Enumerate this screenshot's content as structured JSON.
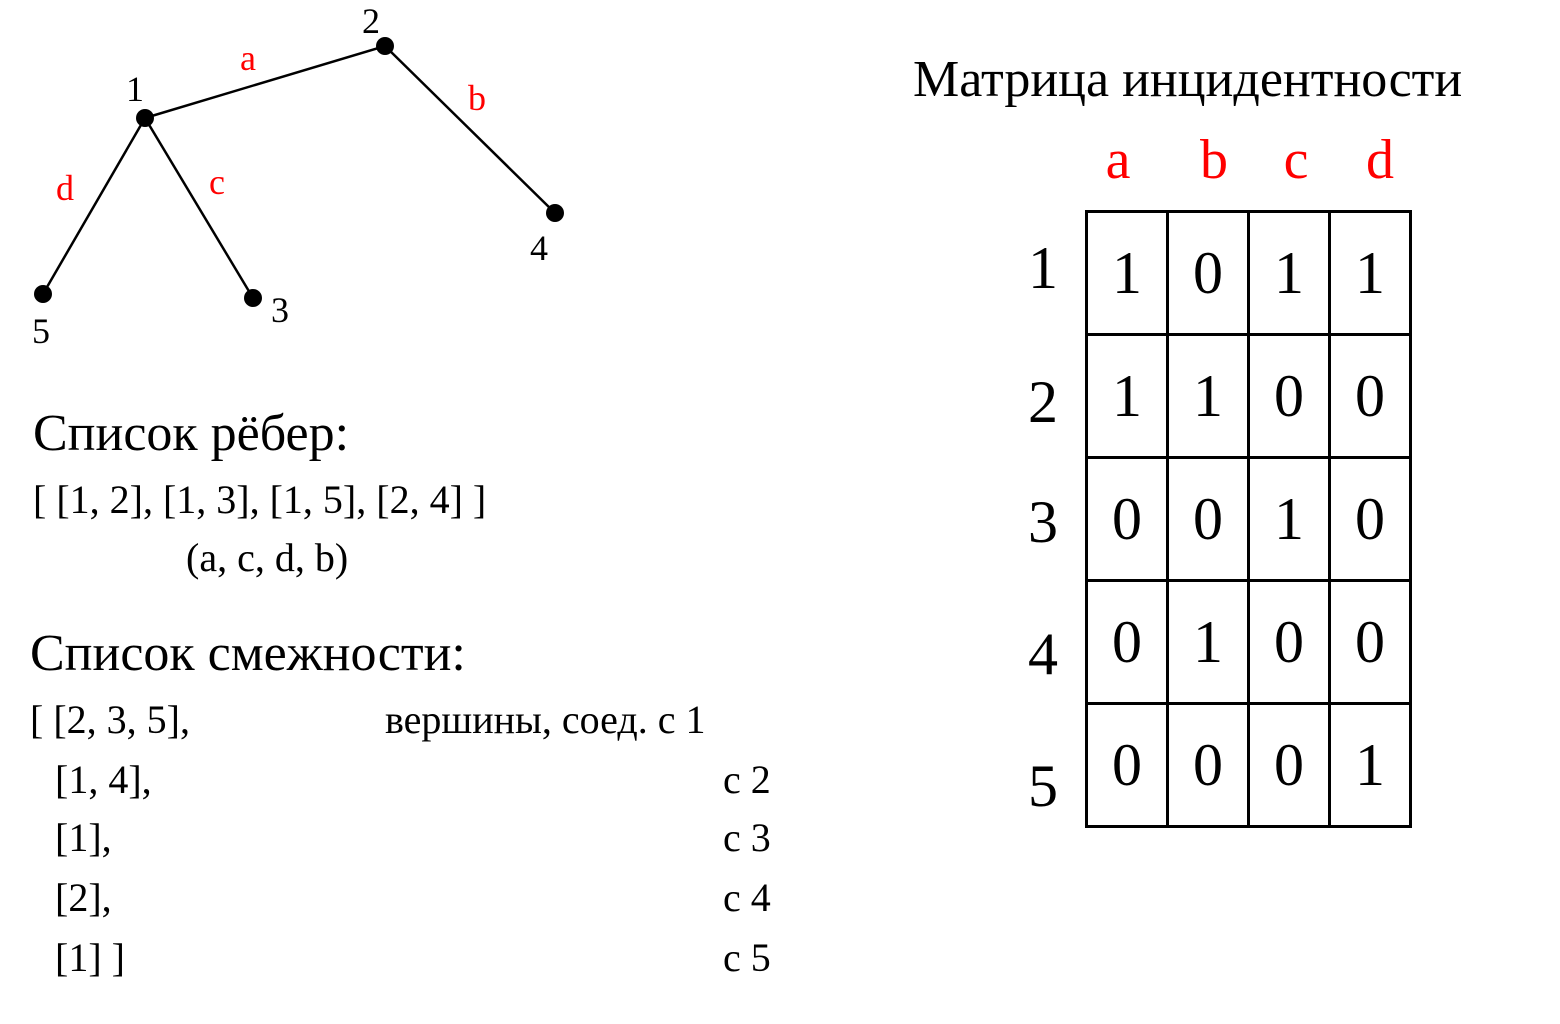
{
  "graph": {
    "vertices": [
      "1",
      "2",
      "3",
      "4",
      "5"
    ],
    "edges": [
      {
        "label": "a",
        "from": "1",
        "to": "2"
      },
      {
        "label": "b",
        "from": "2",
        "to": "4"
      },
      {
        "label": "c",
        "from": "1",
        "to": "3"
      },
      {
        "label": "d",
        "from": "1",
        "to": "5"
      }
    ],
    "edge_color": "#ff0000",
    "vertex_color": "#000000"
  },
  "edge_list": {
    "heading": "Список рёбер:",
    "value": "[ [1, 2], [1, 3], [1, 5], [2, 4] ]",
    "labels": "(a, c, d, b)"
  },
  "adjacency": {
    "heading": "Список смежности:",
    "rows": [
      {
        "list": "[ [2, 3, 5],",
        "note": "вершины, соед. с 1"
      },
      {
        "list": "[1, 4],",
        "note": "с 2"
      },
      {
        "list": "[1],",
        "note": "с 3"
      },
      {
        "list": "[2],",
        "note": "с 4"
      },
      {
        "list": "[1] ]",
        "note": "с 5"
      }
    ]
  },
  "matrix": {
    "title": "Матрица инцидентности",
    "columns": [
      "a",
      "b",
      "c",
      "d"
    ],
    "rows": [
      "1",
      "2",
      "3",
      "4",
      "5"
    ],
    "values": [
      [
        "1",
        "0",
        "1",
        "1"
      ],
      [
        "1",
        "1",
        "0",
        "0"
      ],
      [
        "0",
        "0",
        "1",
        "0"
      ],
      [
        "0",
        "1",
        "0",
        "0"
      ],
      [
        "0",
        "0",
        "0",
        "1"
      ]
    ],
    "header_color": "#ff0000"
  }
}
